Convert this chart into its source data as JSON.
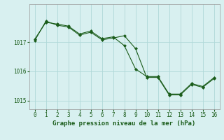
{
  "line1_x": [
    0,
    1,
    2,
    3,
    4,
    5,
    6,
    7,
    8,
    9,
    10,
    11,
    12,
    13,
    14,
    15,
    16
  ],
  "line1_y": [
    1017.1,
    1017.68,
    1017.62,
    1017.55,
    1017.28,
    1017.38,
    1017.12,
    1017.18,
    1016.88,
    1016.08,
    1015.82,
    1015.82,
    1015.22,
    1015.22,
    1015.58,
    1015.48,
    1015.78
  ],
  "line2_x": [
    0,
    1,
    2,
    3,
    4,
    5,
    6,
    7,
    8,
    9,
    10,
    11,
    12,
    13,
    14,
    15,
    16
  ],
  "line2_y": [
    1017.05,
    1017.72,
    1017.58,
    1017.52,
    1017.24,
    1017.34,
    1017.08,
    1017.14,
    1017.22,
    1016.78,
    1015.79,
    1015.79,
    1015.19,
    1015.19,
    1015.55,
    1015.45,
    1015.75
  ],
  "line_color": "#1a5c1a",
  "bg_color": "#d8f0f0",
  "grid_color": "#b0d8d8",
  "xlabel": "Graphe pression niveau de la mer (hPa)",
  "ylim": [
    1014.7,
    1018.3
  ],
  "xlim": [
    -0.5,
    16.5
  ],
  "yticks": [
    1015,
    1016,
    1017
  ],
  "xticks": [
    0,
    1,
    2,
    3,
    4,
    5,
    6,
    7,
    8,
    9,
    10,
    11,
    12,
    13,
    14,
    15,
    16
  ]
}
